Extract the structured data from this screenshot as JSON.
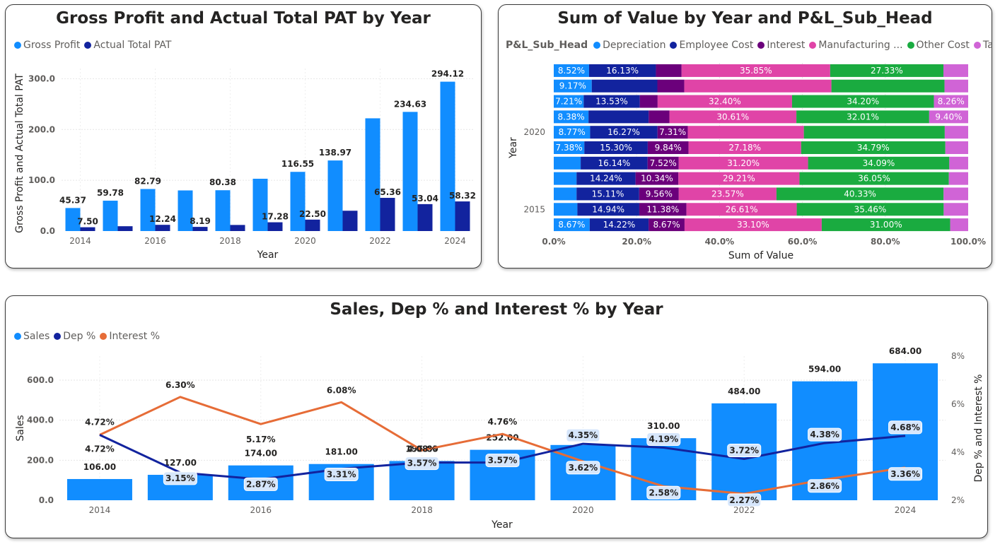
{
  "colors": {
    "gross_profit": "#118DFF",
    "actual_total_pat": "#12239E",
    "depreciation": "#118DFF",
    "employee_cost": "#12239E",
    "interest": "#6B007B",
    "manufacturing": "#E044A7",
    "other_cost": "#1AAB40",
    "tax": "#D064D6",
    "sales": "#118DFF",
    "dep_pct": "#12239E",
    "interest_pct": "#E66C37"
  },
  "chart_data": [
    {
      "type": "bar",
      "title": "Gross Profit and Actual Total PAT by Year",
      "xlabel": "Year",
      "ylabel": "Gross Profit and Actual Total PAT",
      "ylim": [
        0,
        320
      ],
      "yticks": [
        "0.0",
        "100.0",
        "200.0",
        "300.0"
      ],
      "categories": [
        "2014",
        "2015",
        "2016",
        "2017",
        "2018",
        "2019",
        "2020",
        "2021",
        "2022",
        "2023",
        "2024"
      ],
      "xtick_labels": [
        "2014",
        "",
        "2016",
        "",
        "2018",
        "",
        "2020",
        "",
        "2022",
        "",
        "2024"
      ],
      "series": [
        {
          "name": "Gross Profit",
          "values": [
            45.37,
            59.78,
            82.79,
            80.0,
            80.38,
            103.0,
            116.55,
            138.97,
            222.0,
            234.63,
            294.12
          ],
          "labels": [
            "45.37",
            "59.78",
            "82.79",
            "",
            "80.38",
            "",
            "116.55",
            "138.97",
            "",
            "234.63",
            "294.12"
          ]
        },
        {
          "name": "Actual Total PAT",
          "values": [
            7.5,
            9.5,
            12.24,
            8.19,
            12.0,
            17.28,
            22.5,
            40.0,
            65.36,
            53.04,
            58.32
          ],
          "labels": [
            "7.50",
            "",
            "12.24",
            "8.19",
            "",
            "17.28",
            "22.50",
            "",
            "65.36",
            "53.04",
            "58.32"
          ]
        }
      ]
    },
    {
      "type": "bar",
      "orientation": "horizontal",
      "stacked": "percent",
      "title": "Sum of Value by Year and P&L_Sub_Head",
      "legend_title": "P&L_Sub_Head",
      "legend": [
        "Depreciation",
        "Employee Cost",
        "Interest",
        "Manufacturing ...",
        "Other Cost",
        "Tax"
      ],
      "xlabel": "Sum of Value",
      "ylabel": "Year",
      "xlim": [
        0,
        100
      ],
      "xticks": [
        "0.0%",
        "20.0%",
        "40.0%",
        "60.0%",
        "80.0%",
        "100.0%"
      ],
      "categories": [
        "2024",
        "2023",
        "2022",
        "2021",
        "2020",
        "2019",
        "2018",
        "2017",
        "2016",
        "2015",
        "2014"
      ],
      "ytick_labels": [
        "",
        "",
        "",
        "",
        "2020",
        "",
        "",
        "",
        "",
        "2015",
        ""
      ],
      "series": [
        {
          "name": "Depreciation",
          "values": [
            8.52,
            9.17,
            7.21,
            8.38,
            8.77,
            7.38,
            6.5,
            5.5,
            5.5,
            5.7,
            8.67
          ],
          "labels": [
            "8.52%",
            "9.17%",
            "7.21%",
            "8.38%",
            "8.77%",
            "7.38%",
            "",
            "",
            "",
            "",
            "8.67%"
          ]
        },
        {
          "name": "Employee Cost",
          "values": [
            16.13,
            15.83,
            13.53,
            14.5,
            16.27,
            15.3,
            16.14,
            14.24,
            15.11,
            14.94,
            14.22
          ],
          "labels": [
            "16.13%",
            "",
            "13.53%",
            "",
            "16.27%",
            "15.30%",
            "16.14%",
            "14.24%",
            "15.11%",
            "14.94%",
            "14.22%"
          ]
        },
        {
          "name": "Interest",
          "values": [
            6.2,
            6.5,
            4.3,
            5.0,
            7.31,
            9.84,
            7.52,
            10.34,
            9.56,
            11.38,
            8.67
          ],
          "labels": [
            "",
            "",
            "",
            "",
            "7.31%",
            "9.84%",
            "7.52%",
            "10.34%",
            "9.56%",
            "11.38%",
            "8.67%"
          ]
        },
        {
          "name": "Manufacturing ...",
          "values": [
            35.85,
            35.5,
            32.4,
            30.61,
            28.0,
            27.18,
            31.2,
            29.21,
            23.57,
            26.61,
            33.1
          ],
          "labels": [
            "35.85%",
            "",
            "32.40%",
            "30.61%",
            "",
            "27.18%",
            "31.20%",
            "29.21%",
            "23.57%",
            "26.61%",
            "33.10%"
          ]
        },
        {
          "name": "Other Cost",
          "values": [
            27.33,
            27.3,
            34.2,
            32.01,
            34.0,
            34.79,
            34.09,
            36.05,
            40.33,
            35.46,
            31.0
          ],
          "labels": [
            "27.33%",
            "",
            "34.20%",
            "32.01%",
            "",
            "34.79%",
            "34.09%",
            "36.05%",
            "40.33%",
            "35.46%",
            "31.00%"
          ]
        },
        {
          "name": "Tax",
          "values": [
            5.97,
            5.7,
            8.26,
            9.4,
            5.65,
            5.51,
            4.55,
            4.66,
            5.93,
            5.91,
            4.34
          ],
          "labels": [
            "",
            "",
            "8.26%",
            "9.40%",
            "",
            "",
            "",
            "",
            "",
            "",
            ""
          ]
        }
      ]
    },
    {
      "type": "bar",
      "combo": "bar+line",
      "title": "Sales, Dep % and Interest % by Year",
      "legend": [
        "Sales",
        "Dep %",
        "Interest %"
      ],
      "xlabel": "Year",
      "ylabel": "Sales",
      "y2label": "Dep % and Interest %",
      "ylim": [
        0,
        720
      ],
      "yticks": [
        "0.0",
        "200.0",
        "400.0",
        "600.0"
      ],
      "y2lim": [
        2,
        8
      ],
      "y2ticks": [
        "2%",
        "4%",
        "6%",
        "8%"
      ],
      "categories": [
        "2014",
        "2015",
        "2016",
        "2017",
        "2018",
        "2019",
        "2020",
        "2021",
        "2022",
        "2023",
        "2024"
      ],
      "xtick_labels": [
        "2014",
        "",
        "2016",
        "",
        "2018",
        "",
        "2020",
        "",
        "2022",
        "",
        "2024"
      ],
      "series": [
        {
          "name": "Sales",
          "kind": "bar",
          "values": [
            106,
            127,
            174,
            181,
            196,
            252,
            276,
            310,
            484,
            594,
            684
          ],
          "labels": [
            "106.00",
            "127.00",
            "174.00",
            "181.00",
            "196.00",
            "252.00",
            "276.00",
            "310.00",
            "484.00",
            "594.00",
            "684.00"
          ]
        },
        {
          "name": "Dep %",
          "kind": "line",
          "values": [
            4.72,
            3.15,
            2.87,
            3.31,
            3.57,
            3.57,
            4.35,
            4.19,
            3.72,
            4.38,
            4.68
          ],
          "labels": [
            "4.72%",
            "3.15%",
            "2.87%",
            "3.31%",
            "3.57%",
            "3.57%",
            "4.35%",
            "4.19%",
            "3.72%",
            "4.38%",
            "4.68%"
          ]
        },
        {
          "name": "Interest %",
          "kind": "line",
          "values": [
            4.72,
            6.3,
            5.17,
            6.08,
            4.08,
            4.76,
            3.62,
            2.58,
            2.27,
            2.86,
            3.36
          ],
          "labels": [
            "4.72%",
            "6.30%",
            "5.17%",
            "6.08%",
            "4.08%",
            "4.76%",
            "3.62%",
            "2.58%",
            "2.27%",
            "2.86%",
            "3.36%"
          ]
        }
      ]
    }
  ]
}
